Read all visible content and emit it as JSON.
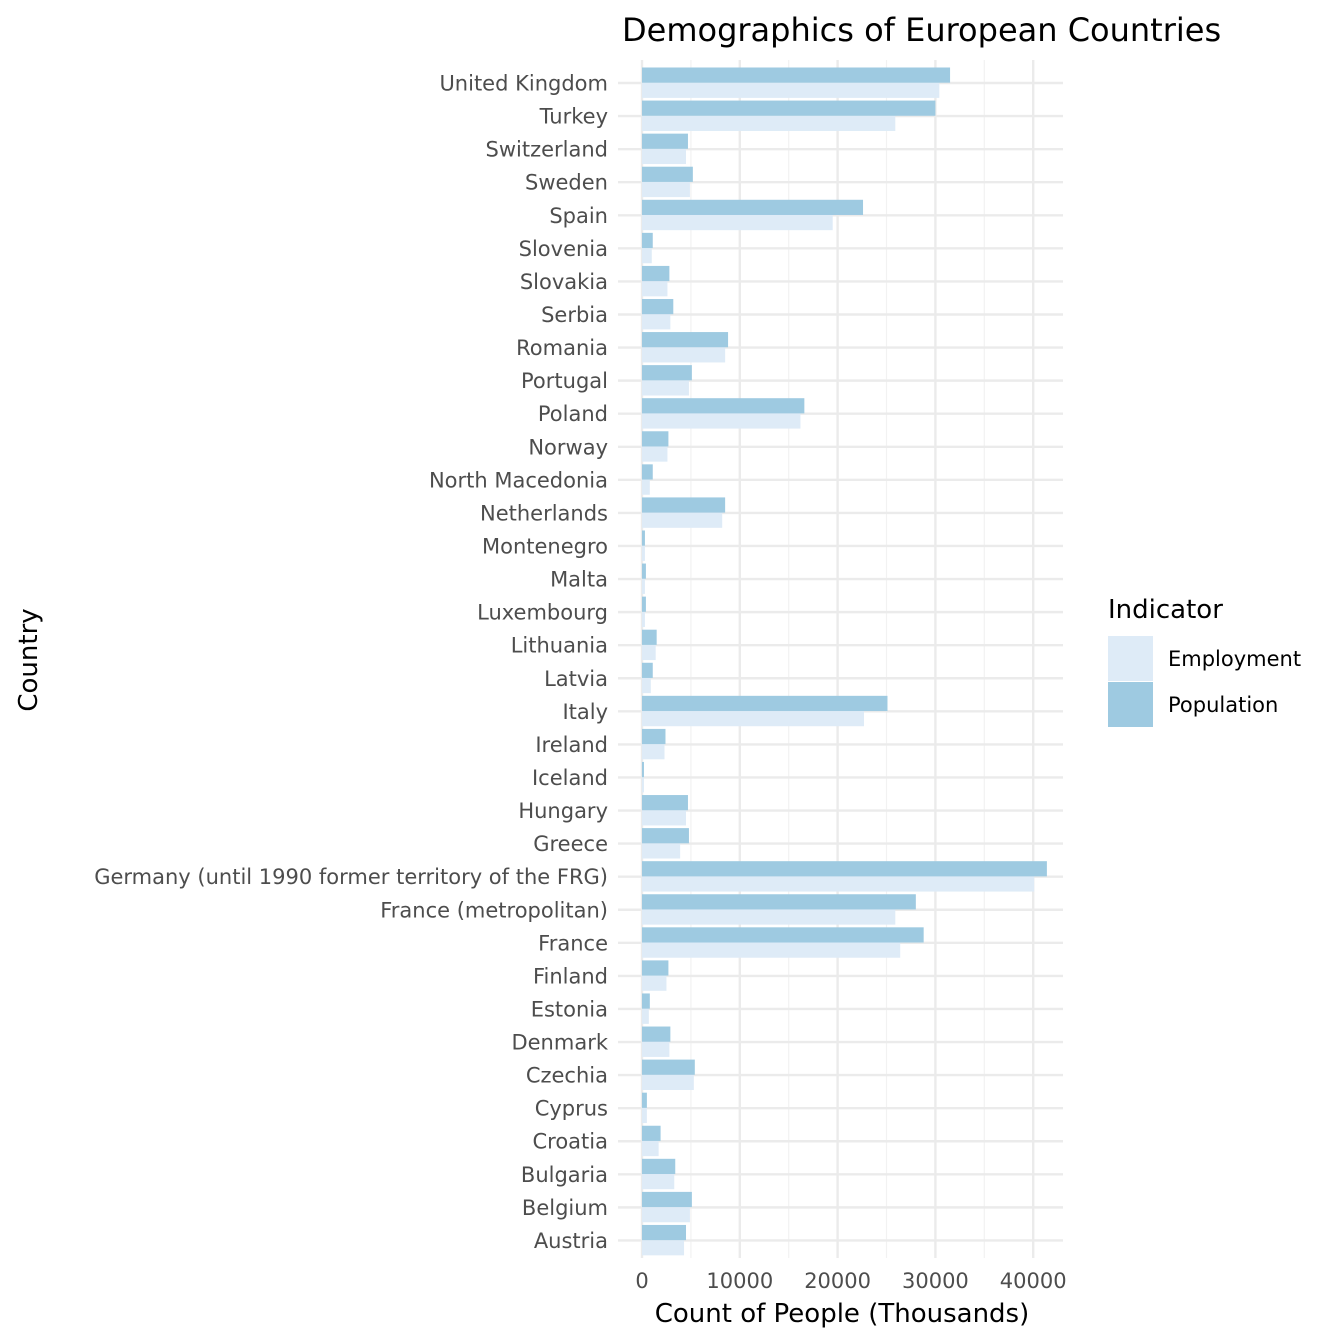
{
  "chart_data": {
    "type": "bar",
    "orientation": "horizontal",
    "title": "Demographics of European Countries",
    "xlabel": "Count of People (Thousands)",
    "ylabel": "Country",
    "xlim": [
      0,
      43000
    ],
    "x_ticks": [
      0,
      10000,
      20000,
      30000,
      40000
    ],
    "grid": true,
    "legend": {
      "title": "Indicator",
      "position": "right",
      "entries": [
        {
          "name": "Employment",
          "color": "#deebf7"
        },
        {
          "name": "Population",
          "color": "#9ecae1"
        }
      ]
    },
    "categories": [
      "United Kingdom",
      "Turkey",
      "Switzerland",
      "Sweden",
      "Spain",
      "Slovenia",
      "Slovakia",
      "Serbia",
      "Romania",
      "Portugal",
      "Poland",
      "Norway",
      "North Macedonia",
      "Netherlands",
      "Montenegro",
      "Malta",
      "Luxembourg",
      "Lithuania",
      "Latvia",
      "Italy",
      "Ireland",
      "Iceland",
      "Hungary",
      "Greece",
      "Germany (until 1990 former territory of the FRG)",
      "France (metropolitan)",
      "France",
      "Finland",
      "Estonia",
      "Denmark",
      "Czechia",
      "Cyprus",
      "Croatia",
      "Bulgaria",
      "Belgium",
      "Austria"
    ],
    "series": [
      {
        "name": "Employment",
        "color": "#deebf7",
        "values": [
          30400,
          25900,
          4500,
          4900,
          19500,
          1000,
          2600,
          2900,
          8500,
          4800,
          16200,
          2600,
          800,
          8200,
          300,
          300,
          300,
          1400,
          900,
          22700,
          2300,
          200,
          4500,
          3900,
          40100,
          25900,
          26400,
          2500,
          700,
          2800,
          5300,
          500,
          1700,
          3300,
          4900,
          4300
        ]
      },
      {
        "name": "Population",
        "color": "#9ecae1",
        "values": [
          31500,
          30000,
          4700,
          5200,
          22600,
          1100,
          2800,
          3200,
          8800,
          5100,
          16600,
          2700,
          1100,
          8500,
          300,
          400,
          400,
          1500,
          1100,
          25100,
          2400,
          200,
          4700,
          4800,
          41400,
          28000,
          28800,
          2700,
          800,
          2900,
          5400,
          500,
          1900,
          3400,
          5100,
          4500
        ]
      }
    ]
  }
}
